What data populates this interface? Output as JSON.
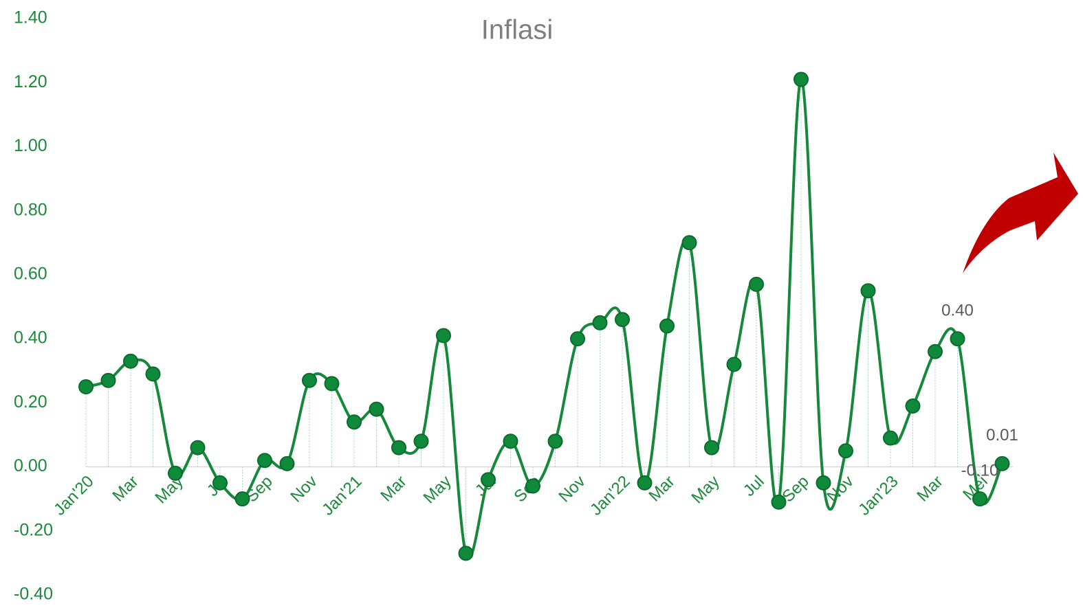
{
  "chart_data": {
    "type": "line",
    "title": "Inflasi",
    "categories": [
      "Jan'20",
      null,
      "Mar",
      null,
      "May",
      null,
      "Jul",
      null,
      "Sep",
      null,
      "Nov",
      null,
      "Jan'21",
      null,
      "Mar",
      null,
      "May",
      null,
      "Jul",
      null,
      "Sep",
      null,
      "Nov",
      null,
      "Jan'22",
      null,
      "Mar",
      null,
      "May",
      null,
      "Jul",
      null,
      "Sep",
      null,
      "Nov",
      null,
      "Jan'23",
      null,
      "Mar",
      null,
      "Mei",
      null
    ],
    "series": [
      {
        "name": "Inflasi",
        "color": "#15893a",
        "values": [
          0.25,
          0.27,
          0.33,
          0.29,
          -0.02,
          0.06,
          -0.05,
          -0.1,
          0.02,
          0.01,
          0.27,
          0.26,
          0.14,
          0.18,
          0.06,
          0.08,
          0.41,
          -0.27,
          -0.04,
          0.08,
          -0.06,
          0.08,
          0.4,
          0.45,
          0.46,
          -0.05,
          0.44,
          0.7,
          0.06,
          0.32,
          0.57,
          -0.11,
          1.21,
          -0.05,
          0.05,
          0.55,
          0.09,
          0.19,
          0.36,
          0.4,
          -0.1,
          0.01
        ],
        "value_labels": [
          null,
          null,
          null,
          null,
          null,
          null,
          null,
          null,
          null,
          null,
          null,
          null,
          null,
          null,
          null,
          null,
          null,
          null,
          null,
          null,
          null,
          null,
          null,
          null,
          null,
          null,
          null,
          null,
          null,
          null,
          null,
          null,
          null,
          null,
          null,
          null,
          null,
          null,
          null,
          "0.40",
          "-0.10",
          "0.01"
        ]
      }
    ],
    "ylim": [
      -0.4,
      1.4
    ],
    "yticks": [
      {
        "value": -0.4,
        "label": "-0.40"
      },
      {
        "value": -0.2,
        "label": "-0.20"
      },
      {
        "value": 0,
        "label": "0.00"
      },
      {
        "value": 0.2,
        "label": "0.20"
      },
      {
        "value": 0.4,
        "label": "0.40"
      },
      {
        "value": 0.6,
        "label": "0.60"
      },
      {
        "value": 0.8,
        "label": "0.80"
      },
      {
        "value": 1.0,
        "label": "1.00"
      },
      {
        "value": 1.2,
        "label": "1.20"
      },
      {
        "value": 1.4,
        "label": "1.40"
      }
    ]
  }
}
